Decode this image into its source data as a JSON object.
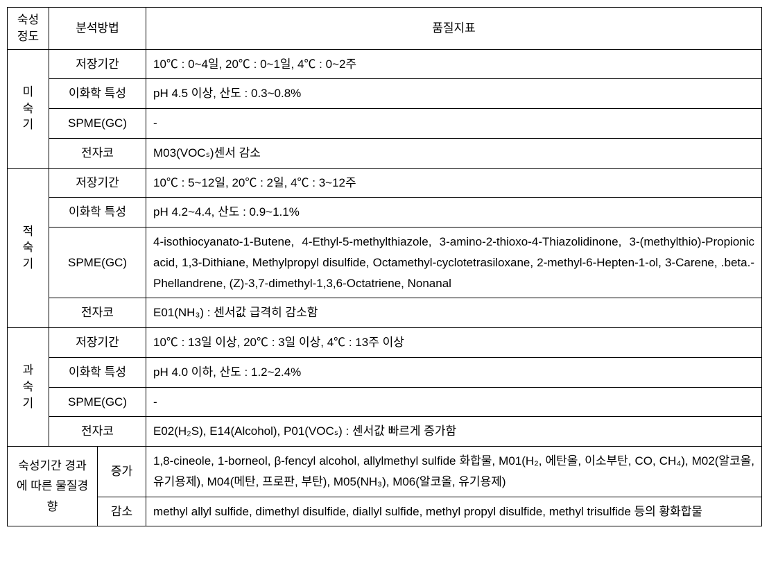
{
  "headers": {
    "maturity": "숙성\n정도",
    "method": "분석방법",
    "indicator": "품질지표"
  },
  "stages": {
    "unripe": {
      "label": "미\n숙\n기",
      "rows": {
        "storage": {
          "method": "저장기간",
          "value": "10℃ : 0~4일, 20℃ : 0~1일, 4℃ : 0~2주"
        },
        "chemical": {
          "method": "이화학 특성",
          "value": "pH 4.5 이상, 산도 : 0.3~0.8%"
        },
        "spme": {
          "method": "SPME(GC)",
          "value": "-"
        },
        "enose": {
          "method": "전자코",
          "value": "M03(VOCₛ)센서 감소"
        }
      }
    },
    "optimal": {
      "label": "적\n숙\n기",
      "rows": {
        "storage": {
          "method": "저장기간",
          "value": "10℃ : 5~12일, 20℃ : 2일, 4℃ : 3~12주"
        },
        "chemical": {
          "method": "이화학 특성",
          "value": "pH 4.2~4.4, 산도 : 0.9~1.1%"
        },
        "spme": {
          "method": "SPME(GC)",
          "value": "4-isothiocyanato-1-Butene, 4-Ethyl-5-methylthiazole, 3-amino-2-thioxo-4-Thiazolidinone, 3-(methylthio)-Propionic acid, 1,3-Dithiane, Methylpropyl disulfide, Octamethyl-cyclotetrasiloxane, 2-methyl-6-Hepten-1-ol, 3-Carene, .beta.-Phellandrene, (Z)-3,7-dimethyl-1,3,6-Octatriene, Nonanal"
        },
        "enose": {
          "method": "전자코",
          "value": "E01(NH₃) : 센서값 급격히 감소함"
        }
      }
    },
    "overripe": {
      "label": "과\n숙\n기",
      "rows": {
        "storage": {
          "method": "저장기간",
          "value": "10℃ : 13일 이상, 20℃ : 3일 이상, 4℃ : 13주 이상"
        },
        "chemical": {
          "method": "이화학 특성",
          "value": "pH 4.0 이하, 산도 : 1.2~2.4%"
        },
        "spme": {
          "method": "SPME(GC)",
          "value": "-"
        },
        "enose": {
          "method": "전자코",
          "value": "E02(H₂S), E14(Alcohol), P01(VOCₛ) : 센서값 빠르게 증가함"
        }
      }
    }
  },
  "trend": {
    "label": "숙성기간 경과에 따른 물질경향",
    "increase": {
      "label": "증가",
      "value": "1,8-cineole, 1-borneol, β-fencyl alcohol, allylmethyl sulfide 화합물, M01(H₂, 에탄올, 이소부탄, CO, CH₄), M02(알코올, 유기용제), M04(메탄, 프로판, 부탄), M05(NH₃), M06(알코올, 유기용제)"
    },
    "decrease": {
      "label": "감소",
      "value": "methyl allyl sulfide, dimethyl disulfide, diallyl sulfide, methyl propyl disulfide, methyl trisulfide 등의 황화합물"
    }
  }
}
